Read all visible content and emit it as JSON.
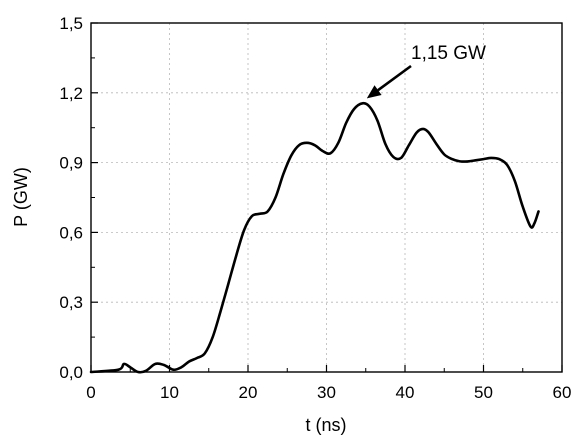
{
  "chart_data": {
    "type": "line",
    "xlabel": "t (ns)",
    "ylabel": "P (GW)",
    "xlim": [
      0,
      60
    ],
    "ylim": [
      0,
      1.5
    ],
    "x_ticks": [
      0,
      10,
      20,
      30,
      40,
      50,
      60
    ],
    "x_tick_labels": [
      "0",
      "10",
      "20",
      "30",
      "40",
      "50",
      "60"
    ],
    "y_ticks": [
      0,
      0.3,
      0.6,
      0.9,
      1.2,
      1.5
    ],
    "y_tick_labels": [
      "0,0",
      "0,3",
      "0,6",
      "0,9",
      "1,2",
      "1,5"
    ],
    "grid": true,
    "line_color": "#000000",
    "series": [
      {
        "x": [
          0,
          3.5,
          4.2,
          5,
          6,
          7,
          8.2,
          9.3,
          10.5,
          11.5,
          12.5,
          13.5,
          14.5,
          15.5,
          16.5,
          17.5,
          18.5,
          19.5,
          20.5,
          21.5,
          22.5,
          23.5,
          24.5,
          25.5,
          26.5,
          27.5,
          28.5,
          29.5,
          30.5,
          31.5,
          32.5,
          33.5,
          34.6,
          35.5,
          36.5,
          37.5,
          38.5,
          39.5,
          40.5,
          41.5,
          42.3,
          43,
          44,
          45,
          46,
          47,
          48,
          49,
          50,
          51,
          52,
          53,
          54,
          55,
          56,
          56.5,
          57
        ],
        "y": [
          0,
          0.01,
          0.035,
          0.02,
          0.0,
          0.005,
          0.035,
          0.03,
          0.01,
          0.02,
          0.045,
          0.06,
          0.08,
          0.15,
          0.26,
          0.38,
          0.5,
          0.61,
          0.67,
          0.68,
          0.69,
          0.75,
          0.85,
          0.93,
          0.975,
          0.985,
          0.975,
          0.95,
          0.94,
          0.985,
          1.07,
          1.13,
          1.155,
          1.14,
          1.08,
          0.98,
          0.925,
          0.92,
          0.975,
          1.03,
          1.045,
          1.03,
          0.98,
          0.935,
          0.915,
          0.905,
          0.905,
          0.91,
          0.915,
          0.92,
          0.915,
          0.89,
          0.82,
          0.71,
          0.625,
          0.64,
          0.69
        ]
      }
    ],
    "annotations": [
      {
        "text": "1,15 GW",
        "x": 35,
        "y": 1.15
      }
    ]
  }
}
